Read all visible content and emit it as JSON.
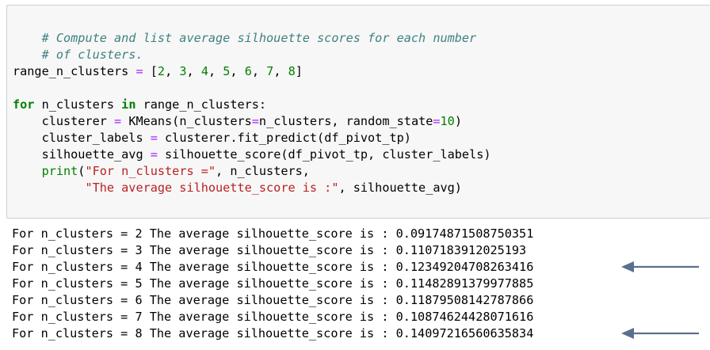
{
  "code_cell": {
    "comment_line_1": "# Compute and list average silhouette scores for each number",
    "comment_line_2": "# of clusters.",
    "range_var": "range_n_clusters",
    "range_eq": " = ",
    "range_open": "[",
    "range_values": [
      "2",
      "3",
      "4",
      "5",
      "6",
      "7",
      "8"
    ],
    "range_close": "]",
    "for_kw": "for",
    "for_var": " n_clusters ",
    "in_kw": "in",
    "for_iter": " range_n_clusters:",
    "line_clusterer_1": "    clusterer ",
    "line_clusterer_2": " KMeans(n_clusters",
    "line_clusterer_3": "n_clusters, random_state",
    "line_clusterer_num": "10",
    "line_clusterer_4": ")",
    "line_labels_1": "    cluster_labels ",
    "line_labels_2": " clusterer.fit_predict(df_pivot_tp)",
    "line_silh_1": "    silhouette_avg ",
    "line_silh_2": " silhouette_score(df_pivot_tp, cluster_labels)",
    "print_indent": "    ",
    "print_kw": "print",
    "print_open": "(",
    "print_str": "\"For n_clusters =\"",
    "print_rest": ", n_clusters,",
    "print2_indent": "          ",
    "print2_str": "\"The average silhouette_score is :\"",
    "print2_rest": ", silhouette_avg)",
    "eq": "="
  },
  "output": {
    "lines": [
      "For n_clusters = 2 The average silhouette_score is : 0.09174871508750351",
      "For n_clusters = 3 The average silhouette_score is : 0.1107183912025193",
      "For n_clusters = 4 The average silhouette_score is : 0.12349204708263416",
      "For n_clusters = 5 The average silhouette_score is : 0.11482891379977885",
      "For n_clusters = 6 The average silhouette_score is : 0.11879508142787866",
      "For n_clusters = 7 The average silhouette_score is : 0.10874624428071616",
      "For n_clusters = 8 The average silhouette_score is : 0.14097216560635834"
    ]
  },
  "annotations": {
    "arrow_color": "#5a6f8f",
    "arrow_icon": "left-arrow-icon"
  }
}
